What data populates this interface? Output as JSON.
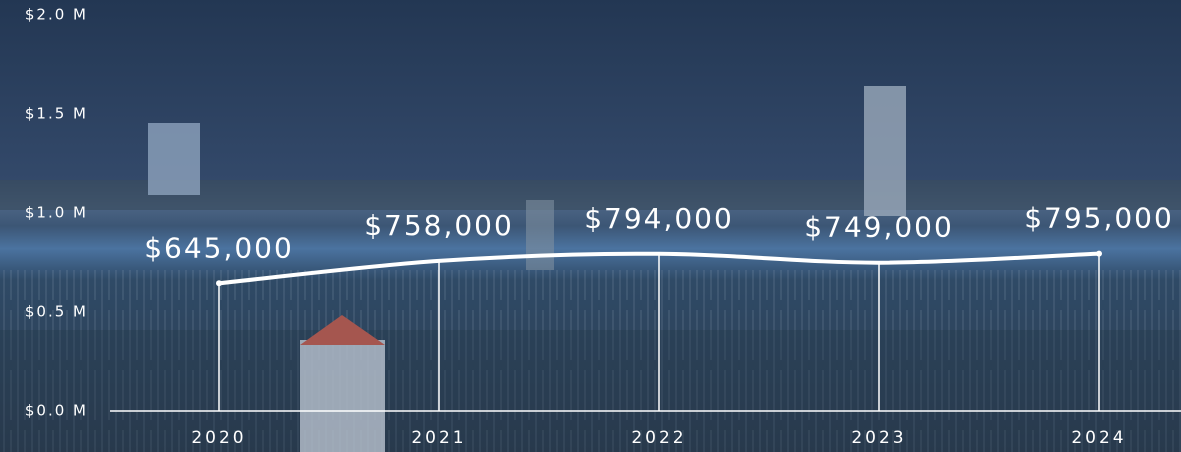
{
  "chart_data": {
    "type": "line",
    "categories": [
      "2020",
      "2021",
      "2022",
      "2023",
      "2024"
    ],
    "values": [
      645000,
      758000,
      794000,
      749000,
      795000
    ],
    "value_labels": [
      "$645,000",
      "$758,000",
      "$794,000",
      "$749,000",
      "$795,000"
    ],
    "color": "#ffffff",
    "ylim": [
      0,
      2000000
    ],
    "yticks": [
      {
        "value": 0,
        "label": "$0.0 M"
      },
      {
        "value": 500000,
        "label": "$0.5 M"
      },
      {
        "value": 1000000,
        "label": "$1.0 M"
      },
      {
        "value": 1500000,
        "label": "$1.5 M"
      },
      {
        "value": 2000000,
        "label": "$2.0 M"
      }
    ],
    "grid": false
  }
}
